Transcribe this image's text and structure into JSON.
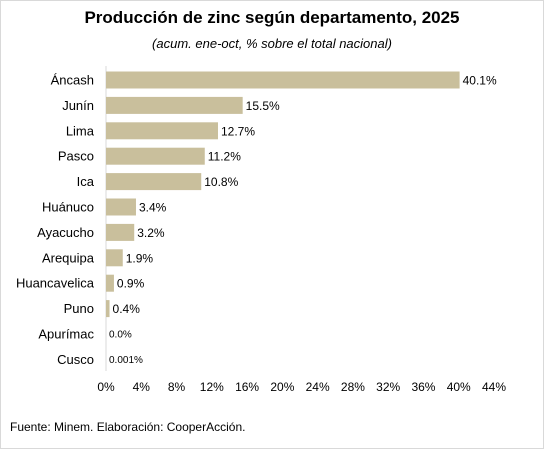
{
  "title": "Producción de zinc según departamento, 2025",
  "subtitle": "(acum. ene-oct, % sobre el total nacional)",
  "source": "Fuente: Minem. Elaboración: CooperAcción.",
  "colors": {
    "bar": "#c9bf9c",
    "axis": "#d9d9d9",
    "text": "#000000"
  },
  "chart_data": {
    "type": "bar",
    "orientation": "horizontal",
    "categories": [
      "Áncash",
      "Junín",
      "Lima",
      "Pasco",
      "Ica",
      "Huánuco",
      "Ayacucho",
      "Arequipa",
      "Huancavelica",
      "Puno",
      "Apurímac",
      "Cusco"
    ],
    "values": [
      40.1,
      15.5,
      12.7,
      11.2,
      10.8,
      3.4,
      3.2,
      1.9,
      0.9,
      0.4,
      0.0,
      0.001
    ],
    "data_labels": [
      "40.1%",
      "15.5%",
      "12.7%",
      "11.2%",
      "10.8%",
      "3.4%",
      "3.2%",
      "1.9%",
      "0.9%",
      "0.4%",
      "0.0%",
      "0.001%"
    ],
    "xlim": [
      0,
      44
    ],
    "xticks": [
      0,
      4,
      8,
      12,
      16,
      20,
      24,
      28,
      32,
      36,
      40,
      44
    ],
    "xtick_labels": [
      "0%",
      "4%",
      "8%",
      "12%",
      "16%",
      "20%",
      "24%",
      "28%",
      "32%",
      "36%",
      "40%",
      "44%"
    ],
    "grid": false,
    "legend": false
  }
}
